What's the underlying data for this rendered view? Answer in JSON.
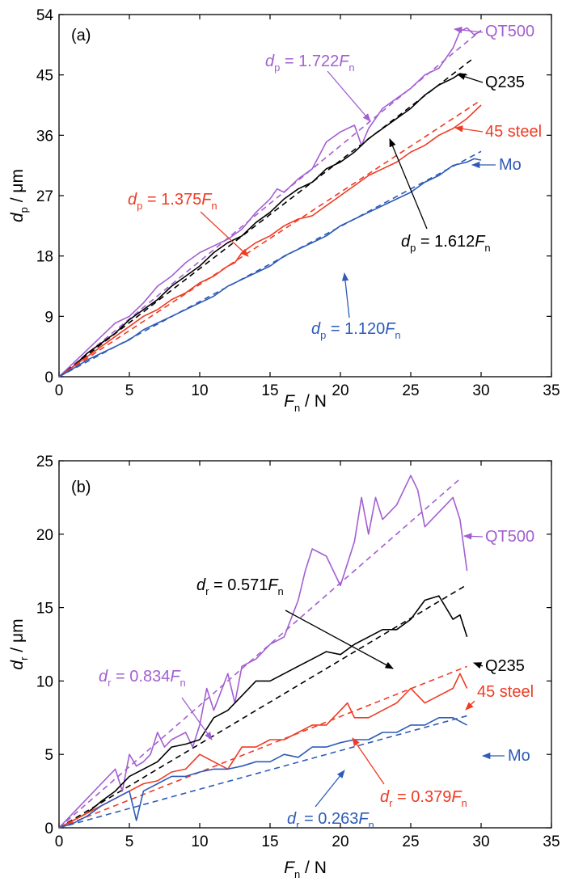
{
  "colors": {
    "QT500": "#a35fd1",
    "Q235": "#000000",
    "45 steel": "#ef3b23",
    "Mo": "#2e5bb8",
    "axis": "#000000"
  },
  "chart_data": [
    {
      "panel_label": "(a)",
      "type": "line",
      "xlabel": {
        "main": "F",
        "sub": "n",
        "unit": " / N"
      },
      "ylabel": {
        "main": "d",
        "sub": "p",
        "unit": " / μm"
      },
      "xlim": [
        0,
        35
      ],
      "ylim": [
        0,
        54
      ],
      "xticks": [
        0,
        5,
        10,
        15,
        20,
        25,
        30,
        35
      ],
      "yticks": [
        0,
        9,
        18,
        27,
        36,
        45,
        54
      ],
      "series": [
        {
          "name": "QT500",
          "x": [
            0,
            1,
            2,
            3,
            4,
            5,
            6,
            7,
            8,
            9,
            10,
            11,
            12,
            13,
            14,
            15,
            15.5,
            16,
            17,
            18,
            19,
            20,
            21,
            21.5,
            22,
            23,
            24,
            25,
            26,
            27,
            28,
            28.5,
            29,
            29.5,
            30
          ],
          "y": [
            0,
            2.0,
            4.0,
            6.0,
            8.0,
            9.0,
            11.0,
            13.5,
            15.0,
            17.0,
            18.5,
            19.5,
            20.5,
            22.0,
            24.5,
            26.5,
            28.0,
            27.5,
            29.5,
            31.0,
            35.0,
            36.5,
            37.5,
            34.5,
            37.0,
            40.0,
            41.5,
            43.0,
            45.0,
            46.0,
            49.0,
            51.5,
            52.0,
            51.0,
            51.5
          ]
        },
        {
          "name": "Q235",
          "x": [
            0,
            1,
            2,
            3,
            4,
            5,
            6,
            7,
            8,
            9,
            10,
            11,
            12,
            13,
            14,
            15,
            16,
            17,
            18,
            19,
            20,
            21,
            22,
            23,
            24,
            25,
            26,
            27,
            28,
            28.5,
            29
          ],
          "y": [
            0,
            1.5,
            3.5,
            5.0,
            6.5,
            8.5,
            10.0,
            11.5,
            13.5,
            15.0,
            16.5,
            18.5,
            20.0,
            21.0,
            23.0,
            24.5,
            26.5,
            28.0,
            29.0,
            31.0,
            32.0,
            33.5,
            35.5,
            37.0,
            38.5,
            40.0,
            42.0,
            43.5,
            44.5,
            45.2,
            45.0
          ]
        },
        {
          "name": "45 steel",
          "x": [
            0,
            1,
            2,
            3,
            4,
            5,
            6,
            7,
            8,
            9,
            10,
            11,
            12,
            12.5,
            13,
            14,
            15,
            16,
            17,
            18,
            19,
            20,
            21,
            22,
            23,
            24,
            25,
            26,
            27,
            28,
            29,
            30
          ],
          "y": [
            0,
            1.5,
            3.0,
            4.5,
            6.0,
            7.5,
            9.0,
            10.0,
            11.5,
            12.5,
            14.0,
            15.0,
            16.5,
            17.0,
            18.5,
            20.0,
            21.0,
            22.5,
            23.5,
            24.0,
            25.5,
            27.0,
            28.5,
            30.0,
            31.0,
            32.0,
            33.5,
            34.5,
            36.0,
            37.0,
            38.5,
            40.5
          ]
        },
        {
          "name": "Mo",
          "x": [
            0,
            1,
            2,
            3,
            4,
            5,
            6,
            7,
            8,
            9,
            10,
            11,
            12,
            13,
            14,
            15,
            16,
            17,
            18,
            19,
            20,
            21,
            22,
            23,
            24,
            25,
            26,
            27,
            28,
            29,
            29.5,
            30
          ],
          "y": [
            0,
            1.2,
            2.5,
            3.5,
            4.5,
            5.5,
            7.0,
            8.0,
            9.0,
            10.0,
            11.0,
            12.0,
            13.5,
            14.5,
            15.5,
            16.5,
            18.0,
            19.0,
            20.0,
            21.0,
            22.5,
            23.5,
            24.5,
            25.5,
            26.5,
            27.5,
            29.0,
            30.0,
            31.5,
            32.0,
            32.5,
            32.3
          ]
        }
      ],
      "fit_lines": [
        {
          "series": "QT500",
          "slope": 1.722,
          "x_end": 30
        },
        {
          "series": "Q235",
          "slope": 1.612,
          "x_end": 29.5
        },
        {
          "series": "45 steel",
          "slope": 1.375,
          "x_end": 30
        },
        {
          "series": "Mo",
          "slope": 1.12,
          "x_end": 30
        }
      ],
      "annotations": [
        {
          "series": "QT500",
          "var": "d",
          "sub": "p",
          "text": " = 1.722",
          "fvar": "F",
          "fsub": "n"
        },
        {
          "series": "Q235",
          "var": "d",
          "sub": "p",
          "text": " = 1.612",
          "fvar": "F",
          "fsub": "n"
        },
        {
          "series": "45 steel",
          "var": "d",
          "sub": "p",
          "text": " = 1.375",
          "fvar": "F",
          "fsub": "n"
        },
        {
          "series": "Mo",
          "var": "d",
          "sub": "p",
          "text": " = 1.120",
          "fvar": "F",
          "fsub": "n"
        }
      ]
    },
    {
      "panel_label": "(b)",
      "type": "line",
      "xlabel": {
        "main": "F",
        "sub": "n",
        "unit": " / N"
      },
      "ylabel": {
        "main": "d",
        "sub": "r",
        "unit": " / μm"
      },
      "xlim": [
        0,
        35
      ],
      "ylim": [
        0,
        25
      ],
      "xticks": [
        0,
        5,
        10,
        15,
        20,
        25,
        30,
        35
      ],
      "yticks": [
        0,
        5,
        10,
        15,
        20,
        25
      ],
      "series": [
        {
          "name": "QT500",
          "x": [
            0,
            1,
            2,
            3,
            4,
            4.5,
            5,
            5.5,
            6,
            6.5,
            7,
            7.5,
            8,
            9,
            9.5,
            10,
            10.5,
            11,
            12,
            12.5,
            13,
            14,
            15,
            16,
            17,
            17.5,
            18,
            19,
            20,
            21,
            21.5,
            22,
            22.5,
            23,
            24,
            25,
            25.5,
            26,
            27,
            28,
            28.5,
            29
          ],
          "y": [
            0,
            1.0,
            2.0,
            3.0,
            4.0,
            2.5,
            5.0,
            4.2,
            4.5,
            5.0,
            6.5,
            5.5,
            6.0,
            6.5,
            5.5,
            7.0,
            9.5,
            8.0,
            10.5,
            8.5,
            11.0,
            11.5,
            12.5,
            13.0,
            15.5,
            17.5,
            19.0,
            18.5,
            16.5,
            19.5,
            22.5,
            20.0,
            22.5,
            21.0,
            22.0,
            24.0,
            23.0,
            20.5,
            21.5,
            22.5,
            21.0,
            17.5
          ]
        },
        {
          "name": "Q235",
          "x": [
            0,
            1,
            2,
            3,
            4,
            5,
            6,
            7,
            8,
            9,
            10,
            11,
            12,
            13,
            14,
            15,
            16,
            17,
            18,
            19,
            20,
            21,
            22,
            23,
            24,
            25,
            26,
            27,
            27.5,
            28,
            28.5,
            29
          ],
          "y": [
            0,
            0.5,
            1.0,
            1.8,
            2.5,
            3.5,
            4.0,
            4.5,
            5.5,
            5.7,
            6.0,
            7.5,
            8.0,
            9.0,
            10.0,
            10.0,
            10.5,
            11.0,
            11.5,
            12.0,
            11.8,
            12.5,
            13.0,
            13.5,
            13.5,
            14.2,
            15.5,
            15.8,
            15.0,
            14.2,
            14.5,
            13.0
          ]
        },
        {
          "name": "45 steel",
          "x": [
            0,
            1,
            2,
            3,
            4,
            5,
            6,
            7,
            8,
            9,
            10,
            11,
            12,
            13,
            14,
            15,
            16,
            17,
            18,
            19,
            20,
            20.5,
            21,
            22,
            23,
            24,
            25,
            26,
            27,
            28,
            28.5,
            29
          ],
          "y": [
            0,
            0.5,
            1.0,
            1.5,
            2.0,
            2.5,
            3.0,
            3.2,
            3.8,
            4.0,
            5.0,
            4.5,
            4.0,
            5.5,
            5.5,
            6.0,
            6.0,
            6.5,
            7.0,
            7.0,
            8.0,
            8.5,
            7.5,
            7.5,
            8.0,
            8.5,
            9.5,
            8.5,
            9.0,
            9.5,
            10.5,
            9.5
          ]
        },
        {
          "name": "Mo",
          "x": [
            0,
            1,
            2,
            3,
            4,
            5,
            5.5,
            6,
            7,
            8,
            9,
            10,
            11,
            12,
            13,
            14,
            15,
            16,
            17,
            18,
            19,
            20,
            21,
            22,
            23,
            24,
            25,
            26,
            27,
            28,
            29
          ],
          "y": [
            0,
            0.3,
            0.8,
            1.5,
            2.0,
            2.5,
            0.5,
            2.5,
            3.0,
            3.5,
            3.5,
            3.8,
            4.0,
            4.0,
            4.2,
            4.5,
            4.5,
            5.0,
            4.8,
            5.5,
            5.5,
            5.8,
            6.0,
            6.0,
            6.5,
            6.5,
            7.0,
            7.0,
            7.5,
            7.5,
            7.0
          ]
        }
      ],
      "fit_lines": [
        {
          "series": "QT500",
          "slope": 0.834,
          "x_end": 28.5
        },
        {
          "series": "Q235",
          "slope": 0.571,
          "x_end": 29
        },
        {
          "series": "45 steel",
          "slope": 0.379,
          "x_end": 29
        },
        {
          "series": "Mo",
          "slope": 0.263,
          "x_end": 29
        }
      ],
      "annotations": [
        {
          "series": "QT500",
          "var": "d",
          "sub": "r",
          "text": " = 0.834",
          "fvar": "F",
          "fsub": "n"
        },
        {
          "series": "Q235",
          "var": "d",
          "sub": "r",
          "text": " = 0.571",
          "fvar": "F",
          "fsub": "n"
        },
        {
          "series": "45 steel",
          "var": "d",
          "sub": "r",
          "text": " = 0.379",
          "fvar": "F",
          "fsub": "n"
        },
        {
          "series": "Mo",
          "var": "d",
          "sub": "r",
          "text": " = 0.263",
          "fvar": "F",
          "fsub": "n"
        }
      ]
    }
  ]
}
